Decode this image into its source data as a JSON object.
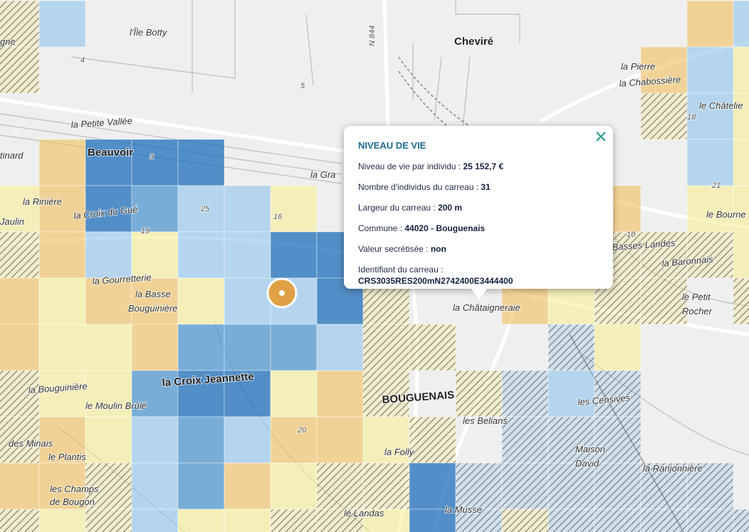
{
  "popup": {
    "title": "NIVEAU DE VIE",
    "rows": [
      {
        "label": "Niveau de vie par individu :",
        "value": "25 152,7 €"
      },
      {
        "label": "Nombre d'individus du carreau :",
        "value": "31"
      },
      {
        "label": "Largeur du carreau :",
        "value": "200 m"
      },
      {
        "label": "Commune :",
        "value": "44020 - Bouguenais"
      },
      {
        "label": "Valeur secrétisée :",
        "value": "non"
      },
      {
        "label": "Identifiant du carreau :",
        "value": "CRS3035RES200mN2742400E3444400"
      }
    ]
  },
  "map": {
    "labels": [
      "l'Île Botty",
      "Cheviré",
      "N 844",
      "la Petite Vallée",
      "Beauvoir",
      "tinard",
      "la Rinière",
      "la Croix du Gué",
      "la Gourretterie",
      "la Basse",
      "Bouguinière",
      "la Croix Jeannette",
      "la Bouguinière",
      "le Moulin Brûlé",
      "des Minais",
      "le Plantis",
      "les Champs",
      "de Bougon",
      "BOUGUENAIS",
      "les Belians",
      "les Censives",
      "Maison",
      "David",
      "la Ranjonnière",
      "la Musse",
      "le Petit",
      "Rocher",
      "la Baronnais",
      "Basses Landes",
      "le Bourne",
      "le Châtelie",
      "la Chabossière",
      "la Pierre",
      "la Châtaigneraie",
      "la Gra",
      "le Landas",
      "la Folly",
      "gne",
      "Jaulin",
      "4",
      "5",
      "25",
      "19",
      "16",
      "20",
      "3",
      "10",
      "21",
      "18"
    ]
  }
}
